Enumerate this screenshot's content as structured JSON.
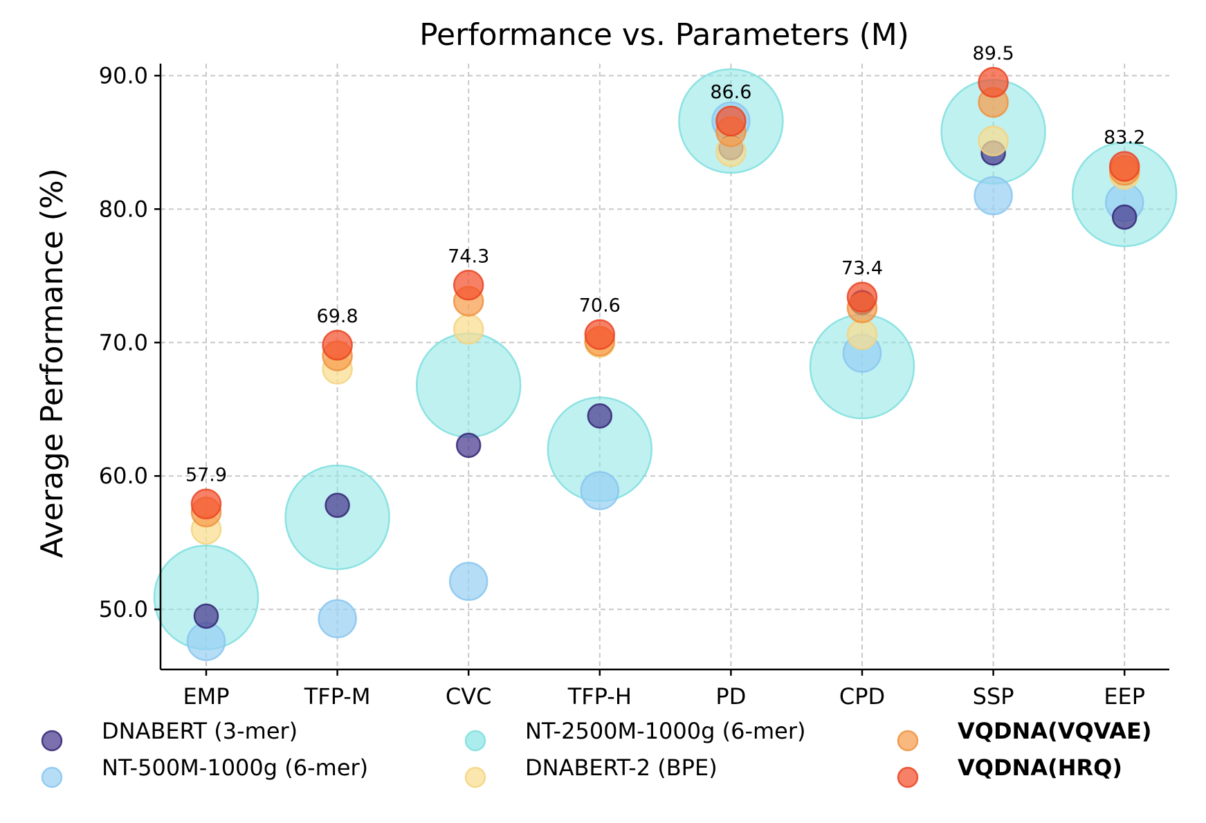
{
  "chart_data": {
    "type": "scatter",
    "title": "Performance vs. Parameters (M)",
    "xlabel": "",
    "ylabel": "Average Performance (%)",
    "categories": [
      "EMP",
      "TFP-M",
      "CVC",
      "TFP-H",
      "PD",
      "CPD",
      "SSP",
      "EEP"
    ],
    "ylim": [
      45.5,
      90.9
    ],
    "yticks": [
      50.0,
      60.0,
      70.0,
      80.0,
      90.0
    ],
    "ytick_labels": [
      "50.0",
      "60.0",
      "70.0",
      "80.0",
      "90.0"
    ],
    "grid": true,
    "legend_position": "bottom",
    "series": [
      {
        "name": "NT-2500M-1000g (6-mer)",
        "color": "#8be6e6",
        "stroke": "#7fdede",
        "size_rank": 4,
        "values": [
          50.9,
          56.9,
          66.8,
          62.0,
          86.6,
          68.2,
          85.8,
          81.1
        ]
      },
      {
        "name": "NT-500M-1000g (6-mer)",
        "color": "#98d0f2",
        "stroke": "#8ac6ee",
        "size_rank": 3,
        "values": [
          47.6,
          49.3,
          52.1,
          58.9,
          86.6,
          69.2,
          81.0,
          80.5
        ]
      },
      {
        "name": "DNABERT (3-mer)",
        "color": "#4a3a8f",
        "stroke": "#322573",
        "size_rank": 1,
        "values": [
          49.5,
          57.8,
          62.3,
          64.5,
          84.6,
          73.0,
          84.2,
          79.4
        ]
      },
      {
        "name": "DNABERT-2 (BPE)",
        "color": "#f9dc8f",
        "stroke": "#f3d481",
        "size_rank": 2,
        "values": [
          56.0,
          68.0,
          71.0,
          70.0,
          84.3,
          70.6,
          85.1,
          82.6
        ]
      },
      {
        "name": "VQDNA(VQVAE)",
        "color": "#f69c4c",
        "stroke": "#ee9240",
        "bold": true,
        "size_rank": 2,
        "values": [
          57.3,
          69.0,
          73.1,
          70.1,
          85.8,
          72.6,
          88.0,
          82.9
        ]
      },
      {
        "name": "VQDNA(HRQ)",
        "color": "#f4512c",
        "stroke": "#ea4422",
        "bold": true,
        "size_rank": 2,
        "values": [
          57.9,
          69.8,
          74.3,
          70.6,
          86.6,
          73.4,
          89.5,
          83.2
        ]
      }
    ],
    "annotations": [
      "57.9",
      "69.8",
      "74.3",
      "70.6",
      "86.6",
      "73.4",
      "89.5",
      "83.2"
    ],
    "legend": [
      {
        "label": "DNABERT (3-mer)",
        "series_index": 2,
        "bold": false
      },
      {
        "label": "NT-500M-1000g (6-mer)",
        "series_index": 1,
        "bold": false
      },
      {
        "label": "NT-2500M-1000g (6-mer)",
        "series_index": 0,
        "bold": false
      },
      {
        "label": "DNABERT-2 (BPE)",
        "series_index": 3,
        "bold": false
      },
      {
        "label": "VQDNA(VQVAE)",
        "series_index": 4,
        "bold": true
      },
      {
        "label": "VQDNA(HRQ)",
        "series_index": 5,
        "bold": true
      }
    ]
  }
}
